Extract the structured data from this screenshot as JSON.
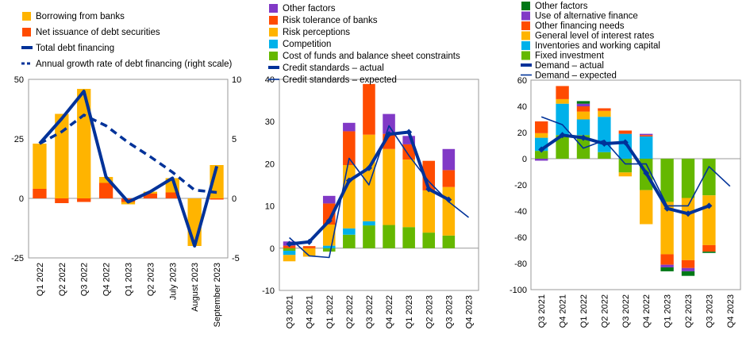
{
  "colors": {
    "orange_red": "#FF4B00",
    "yellow": "#FFB400",
    "purple": "#8139C6",
    "cyan": "#00B1EA",
    "green": "#65B800",
    "dark_green": "#007816",
    "navy": "#003299"
  },
  "chart_data": [
    {
      "type": "bar",
      "stacked": true,
      "categories": [
        "Q1 2022",
        "Q2 2022",
        "Q3 2022",
        "Q4 2022",
        "Q1 2023",
        "Q2 2023",
        "July 2023",
        "August 2023",
        "September 2023"
      ],
      "ylim": [
        -25,
        50
      ],
      "yticks": [
        "-25",
        "0",
        "25",
        "50"
      ],
      "ylim_right": [
        -5,
        10
      ],
      "yticks_right": [
        "-5",
        "0",
        "5",
        "10"
      ],
      "series": [
        {
          "name": "Borrowing from banks",
          "kind": "bar",
          "color": "#FFB400",
          "values": [
            19,
            35.5,
            46,
            2.5,
            -1,
            0.8,
            6,
            -20,
            14
          ]
        },
        {
          "name": "Net issuance of debt securities",
          "kind": "bar",
          "color": "#FF4B00",
          "values": [
            4,
            -2,
            -1.5,
            6.5,
            -1.5,
            2,
            2.5,
            0,
            -0.5
          ]
        },
        {
          "name": "Total debt financing",
          "kind": "line",
          "color": "#003299",
          "values": [
            23,
            33.5,
            45,
            9,
            -1.5,
            2.8,
            8.5,
            -20,
            13.5
          ]
        },
        {
          "name": "Annual growth rate of debt financing (right scale)",
          "kind": "dashed",
          "axis": "right",
          "color": "#003299",
          "values": [
            4.6,
            5.6,
            7,
            6.1,
            4.7,
            3.5,
            2.2,
            0.7,
            0.5
          ]
        }
      ]
    },
    {
      "type": "bar",
      "stacked": true,
      "categories": [
        "Q3 2021",
        "Q4 2021",
        "Q1 2022",
        "Q2 2022",
        "Q3 2022",
        "Q4 2022",
        "Q1 2023",
        "Q2 2023",
        "Q3 2023",
        "Q4 2023"
      ],
      "ylim": [
        -10,
        40
      ],
      "yticks": [
        "-10",
        "0",
        "10",
        "20",
        "30",
        "40"
      ],
      "series": [
        {
          "name": "Other factors",
          "kind": "bar",
          "color": "#8139C6",
          "values": [
            1,
            0,
            1.8,
            2,
            0,
            4.7,
            2,
            0,
            5,
            null
          ]
        },
        {
          "name": "Risk tolerance of banks",
          "kind": "bar",
          "color": "#FF4B00",
          "values": [
            0.6,
            0.5,
            5,
            8,
            12,
            3.6,
            3.6,
            7,
            4,
            null
          ]
        },
        {
          "name": "Risk perceptions",
          "kind": "bar",
          "color": "#FFB400",
          "values": [
            -1.5,
            -2,
            5,
            15,
            20.5,
            18,
            16,
            10,
            11.5,
            null
          ]
        },
        {
          "name": "Competition",
          "kind": "bar",
          "color": "#00B1EA",
          "values": [
            -1,
            0,
            0.6,
            1.5,
            1,
            0,
            0,
            0,
            0,
            null
          ]
        },
        {
          "name": "Cost of funds and balance sheet constraints",
          "kind": "bar",
          "color": "#65B800",
          "values": [
            -0.6,
            0,
            -0.8,
            3.2,
            5.4,
            5.5,
            5,
            3.7,
            3,
            null
          ]
        },
        {
          "name": "Credit standards – actual",
          "kind": "line",
          "color": "#003299",
          "values": [
            1,
            1.5,
            6.5,
            16,
            19,
            27,
            27.5,
            14,
            11.5,
            null
          ]
        },
        {
          "name": "Credit standards – expected",
          "kind": "thin",
          "color": "#003299",
          "values": [
            2.5,
            -1.8,
            -2.2,
            21.3,
            15,
            29,
            22,
            15.8,
            11,
            7.3
          ]
        }
      ]
    },
    {
      "type": "bar",
      "stacked": true,
      "categories": [
        "Q3 2021",
        "Q4 2021",
        "Q1 2022",
        "Q2 2022",
        "Q3 2022",
        "Q4 2022",
        "Q1 2023",
        "Q2 2023",
        "Q3 2023",
        "Q4 2023"
      ],
      "ylim": [
        -100,
        60
      ],
      "yticks": [
        "-100",
        "-80",
        "-60",
        "-40",
        "-20",
        "0",
        "20",
        "40",
        "60"
      ],
      "series": [
        {
          "name": "Other factors",
          "kind": "bar",
          "color": "#007816",
          "values": [
            0,
            0,
            2,
            0,
            0,
            0,
            -3,
            -3.5,
            -1,
            null
          ]
        },
        {
          "name": "Use of alternative finance",
          "kind": "bar",
          "color": "#8139C6",
          "values": [
            -1.5,
            0,
            2,
            0,
            0,
            1,
            -2,
            -2.5,
            0,
            null
          ]
        },
        {
          "name": "Other financing needs",
          "kind": "bar",
          "color": "#FF4B00",
          "values": [
            9,
            10,
            4,
            2,
            2.5,
            1,
            -8,
            -6,
            -5,
            null
          ]
        },
        {
          "name": "General level of interest rates",
          "kind": "bar",
          "color": "#FFB400",
          "values": [
            3.5,
            3.5,
            6,
            4.5,
            -3,
            -26,
            -40,
            -47.5,
            -38,
            null
          ]
        },
        {
          "name": "Inventories and working capital",
          "kind": "bar",
          "color": "#00B1EA",
          "values": [
            10,
            24,
            12,
            27,
            19,
            17,
            0,
            0,
            0,
            null
          ]
        },
        {
          "name": "Fixed investment",
          "kind": "bar",
          "color": "#65B800",
          "values": [
            6,
            18,
            18,
            5,
            -10.5,
            -24,
            -33,
            -30,
            -28,
            null
          ]
        },
        {
          "name": "Demand – actual",
          "kind": "line",
          "color": "#003299",
          "values": [
            7,
            18,
            16,
            11.5,
            12.5,
            -11,
            -38,
            -42,
            -36,
            null
          ]
        },
        {
          "name": "Demand – expected",
          "kind": "thin",
          "color": "#003299",
          "values": [
            32,
            26,
            8,
            14,
            -4,
            -4,
            -36,
            -36,
            -6,
            -21
          ]
        }
      ]
    }
  ]
}
